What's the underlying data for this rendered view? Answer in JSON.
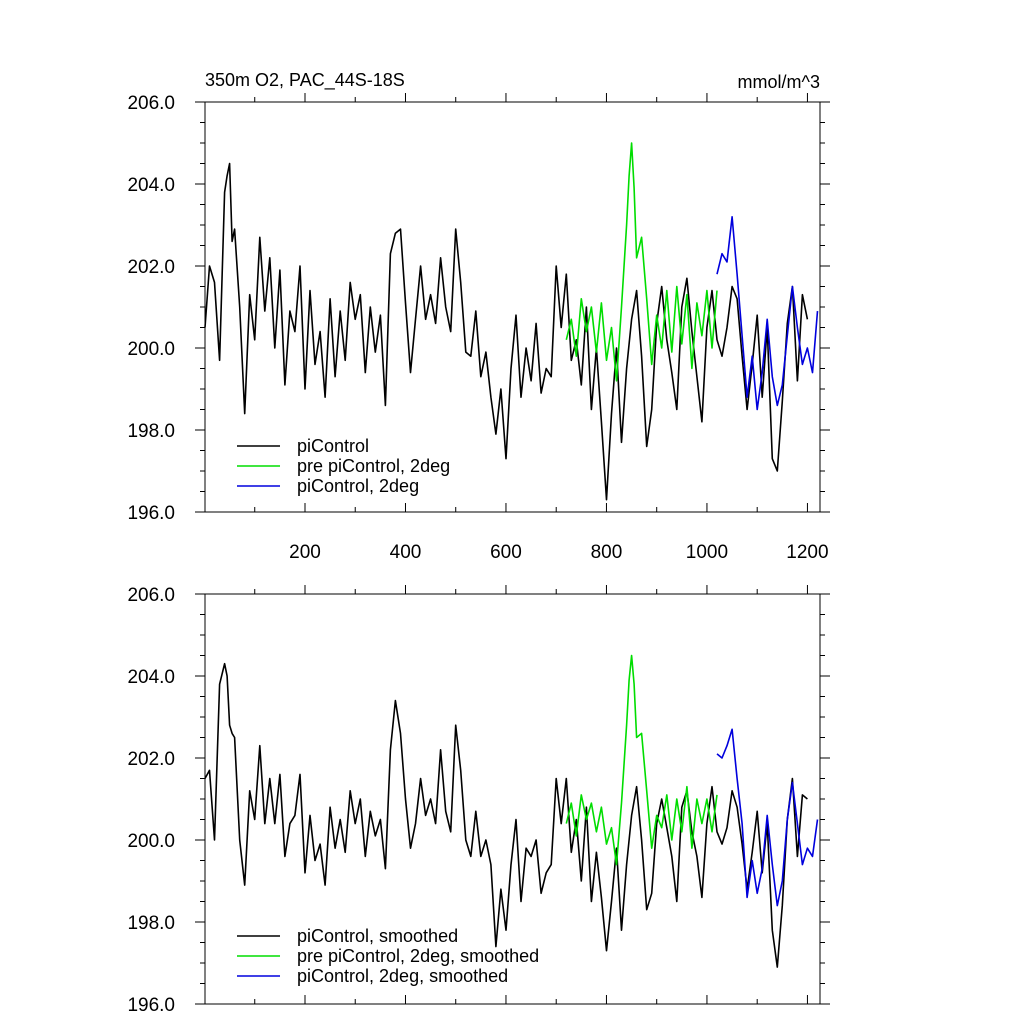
{
  "chart_data": [
    {
      "type": "line",
      "title": "350m O2, PAC_44S-18S",
      "units": "mmol/m^3",
      "xlim": [
        1,
        1225
      ],
      "ylim": [
        196,
        206
      ],
      "xticks": [
        "200",
        "400",
        "600",
        "800",
        "1000",
        "1200"
      ],
      "yticks": [
        "196.0",
        "198.0",
        "200.0",
        "202.0",
        "204.0",
        "206.0"
      ],
      "legend_position": "bottom-left",
      "series": [
        {
          "name": "piControl",
          "color": "#000000",
          "x": [
            1,
            10,
            20,
            30,
            40,
            45,
            50,
            55,
            60,
            70,
            80,
            90,
            100,
            110,
            120,
            130,
            140,
            150,
            160,
            170,
            180,
            190,
            200,
            210,
            220,
            230,
            240,
            250,
            260,
            270,
            280,
            290,
            300,
            310,
            320,
            330,
            340,
            350,
            360,
            370,
            380,
            390,
            400,
            410,
            420,
            430,
            440,
            450,
            460,
            470,
            480,
            490,
            500,
            510,
            520,
            530,
            540,
            550,
            560,
            570,
            580,
            590,
            600,
            610,
            620,
            630,
            640,
            650,
            660,
            670,
            680,
            690,
            700,
            710,
            720,
            730,
            740,
            750,
            760,
            770,
            780,
            790,
            800,
            810,
            820,
            830,
            840,
            850,
            860,
            870,
            880,
            890,
            900,
            910,
            920,
            930,
            940,
            950,
            960,
            970,
            980,
            990,
            1000,
            1010,
            1020,
            1030,
            1040,
            1050,
            1060,
            1070,
            1080,
            1090,
            1100,
            1110,
            1120,
            1130,
            1140,
            1150,
            1160,
            1170,
            1180,
            1190,
            1200
          ],
          "y": [
            200.5,
            202.0,
            201.6,
            199.7,
            203.8,
            204.2,
            204.5,
            202.6,
            202.9,
            201.0,
            198.4,
            201.3,
            200.2,
            202.7,
            200.9,
            202.2,
            200.0,
            201.9,
            199.1,
            200.9,
            200.4,
            202.0,
            199.0,
            201.4,
            199.6,
            200.4,
            198.8,
            201.2,
            199.3,
            200.9,
            199.7,
            201.6,
            200.7,
            201.3,
            199.4,
            201.0,
            199.9,
            200.8,
            198.6,
            202.3,
            202.8,
            202.9,
            201.1,
            199.4,
            200.7,
            202.0,
            200.7,
            201.3,
            200.6,
            202.2,
            201.0,
            200.4,
            202.9,
            201.6,
            199.9,
            199.8,
            200.9,
            199.3,
            199.9,
            198.8,
            197.9,
            199.0,
            197.3,
            199.5,
            200.8,
            198.8,
            200.0,
            199.2,
            200.6,
            198.9,
            199.5,
            199.3,
            202.0,
            200.5,
            201.8,
            199.7,
            200.2,
            199.1,
            201.0,
            198.5,
            200.0,
            198.2,
            196.3,
            198.4,
            200.0,
            197.7,
            199.5,
            200.7,
            201.4,
            199.8,
            197.6,
            198.5,
            200.6,
            201.5,
            200.2,
            199.4,
            198.5,
            201.0,
            201.7,
            200.4,
            199.3,
            198.2,
            200.5,
            201.4,
            200.2,
            199.8,
            200.5,
            201.5,
            201.2,
            199.8,
            198.5,
            199.6,
            200.8,
            198.8,
            200.5,
            197.3,
            197.0,
            198.7,
            200.6,
            201.5,
            199.2,
            201.3,
            200.7
          ]
        },
        {
          "name": "pre piControl, 2deg",
          "color": "#00dd00",
          "x": [
            720,
            730,
            740,
            750,
            760,
            770,
            780,
            790,
            800,
            810,
            820,
            830,
            840,
            845,
            850,
            855,
            860,
            870,
            880,
            890,
            900,
            910,
            920,
            930,
            940,
            950,
            960,
            970,
            980,
            990,
            1000,
            1010,
            1020
          ],
          "y": [
            200.2,
            200.7,
            199.8,
            201.2,
            200.4,
            201.0,
            199.9,
            201.1,
            199.7,
            200.5,
            199.2,
            201.0,
            203.0,
            204.2,
            205.0,
            203.9,
            202.2,
            202.7,
            201.2,
            199.6,
            200.8,
            200.0,
            201.4,
            199.9,
            201.5,
            200.1,
            201.3,
            199.5,
            201.1,
            200.3,
            201.4,
            200.0,
            201.4
          ]
        },
        {
          "name": "piControl, 2deg",
          "color": "#0000dd",
          "x": [
            1020,
            1030,
            1040,
            1050,
            1060,
            1070,
            1080,
            1090,
            1100,
            1110,
            1120,
            1130,
            1140,
            1150,
            1160,
            1170,
            1180,
            1190,
            1200,
            1210,
            1220
          ],
          "y": [
            201.8,
            202.3,
            202.1,
            203.2,
            201.8,
            200.3,
            198.8,
            199.8,
            198.5,
            199.4,
            200.7,
            199.3,
            198.6,
            199.1,
            200.3,
            201.5,
            200.5,
            199.6,
            200.0,
            199.4,
            200.9
          ]
        }
      ]
    },
    {
      "type": "line",
      "xlim": [
        1,
        1225
      ],
      "ylim": [
        196,
        206
      ],
      "yticks": [
        "196.0",
        "198.0",
        "200.0",
        "202.0",
        "204.0",
        "206.0"
      ],
      "legend_position": "bottom-left",
      "series": [
        {
          "name": "piControl, smoothed",
          "color": "#000000",
          "x": [
            1,
            10,
            20,
            30,
            40,
            45,
            50,
            55,
            60,
            70,
            80,
            90,
            100,
            110,
            120,
            130,
            140,
            150,
            160,
            170,
            180,
            190,
            200,
            210,
            220,
            230,
            240,
            250,
            260,
            270,
            280,
            290,
            300,
            310,
            320,
            330,
            340,
            350,
            360,
            370,
            380,
            390,
            400,
            410,
            420,
            430,
            440,
            450,
            460,
            470,
            480,
            490,
            500,
            510,
            520,
            530,
            540,
            550,
            560,
            570,
            580,
            590,
            600,
            610,
            620,
            630,
            640,
            650,
            660,
            670,
            680,
            690,
            700,
            710,
            720,
            730,
            740,
            750,
            760,
            770,
            780,
            790,
            800,
            810,
            820,
            830,
            840,
            850,
            860,
            870,
            880,
            890,
            900,
            910,
            920,
            930,
            940,
            950,
            960,
            970,
            980,
            990,
            1000,
            1010,
            1020,
            1030,
            1040,
            1050,
            1060,
            1070,
            1080,
            1090,
            1100,
            1110,
            1120,
            1130,
            1140,
            1150,
            1160,
            1170,
            1180,
            1190,
            1200
          ],
          "y": [
            201.5,
            201.7,
            200.0,
            203.8,
            204.3,
            204.0,
            202.8,
            202.6,
            202.5,
            200.0,
            198.9,
            201.2,
            200.5,
            202.3,
            200.4,
            201.5,
            200.4,
            201.6,
            199.6,
            200.4,
            200.6,
            201.6,
            199.2,
            200.6,
            199.5,
            199.9,
            198.9,
            200.8,
            199.8,
            200.5,
            199.7,
            201.2,
            200.4,
            201.0,
            199.6,
            200.7,
            200.1,
            200.5,
            199.3,
            202.2,
            203.4,
            202.6,
            201.0,
            199.8,
            200.4,
            201.5,
            200.6,
            201.0,
            200.4,
            202.2,
            200.7,
            200.2,
            202.8,
            201.7,
            200.0,
            199.6,
            200.7,
            199.6,
            200.0,
            199.4,
            197.4,
            198.8,
            197.8,
            199.4,
            200.5,
            198.5,
            199.8,
            199.6,
            200.0,
            198.7,
            199.2,
            199.4,
            201.5,
            200.4,
            201.5,
            199.7,
            200.5,
            199.0,
            200.8,
            198.5,
            199.7,
            198.6,
            197.3,
            198.5,
            199.8,
            197.8,
            199.4,
            200.6,
            201.3,
            200.0,
            198.3,
            198.7,
            200.4,
            201.0,
            200.3,
            199.6,
            198.5,
            200.8,
            201.2,
            200.2,
            199.6,
            198.6,
            200.4,
            201.3,
            200.2,
            199.9,
            200.3,
            201.2,
            200.8,
            199.9,
            198.8,
            199.7,
            200.7,
            199.2,
            200.4,
            197.8,
            196.9,
            198.4,
            200.5,
            201.5,
            199.6,
            201.1,
            201.0
          ]
        },
        {
          "name": "pre piControl, 2deg, smoothed",
          "color": "#00dd00",
          "x": [
            720,
            730,
            740,
            750,
            760,
            770,
            780,
            790,
            800,
            810,
            820,
            830,
            840,
            845,
            850,
            855,
            860,
            870,
            880,
            890,
            900,
            910,
            920,
            930,
            940,
            950,
            960,
            970,
            980,
            990,
            1000,
            1010,
            1020
          ],
          "y": [
            200.4,
            200.9,
            200.1,
            201.1,
            200.5,
            200.9,
            200.2,
            200.8,
            199.9,
            200.3,
            199.4,
            200.9,
            202.8,
            203.9,
            204.5,
            203.8,
            202.5,
            202.6,
            201.2,
            199.8,
            200.6,
            200.3,
            201.1,
            200.0,
            201.0,
            200.2,
            201.3,
            199.8,
            201.0,
            200.4,
            201.0,
            200.2,
            201.1
          ]
        },
        {
          "name": "piControl, 2deg, smoothed",
          "color": "#0000dd",
          "x": [
            1020,
            1030,
            1040,
            1050,
            1060,
            1070,
            1080,
            1090,
            1100,
            1110,
            1120,
            1130,
            1140,
            1150,
            1160,
            1170,
            1180,
            1190,
            1200,
            1210,
            1220
          ],
          "y": [
            202.1,
            202.0,
            202.3,
            202.7,
            201.5,
            200.4,
            198.6,
            199.5,
            198.7,
            199.3,
            200.6,
            199.4,
            198.4,
            199.0,
            200.5,
            201.4,
            200.4,
            199.4,
            199.8,
            199.6,
            200.5
          ]
        }
      ]
    }
  ]
}
